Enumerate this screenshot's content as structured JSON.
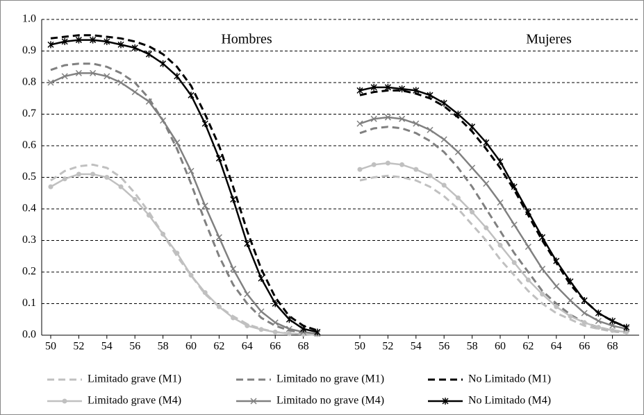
{
  "chart_data": {
    "type": "line",
    "ylim": [
      0,
      1
    ],
    "yticks": [
      {
        "value": 0,
        "label": "0.0"
      },
      0.1,
      0.2,
      0.3,
      0.4,
      0.5,
      0.6,
      0.7,
      0.8,
      0.9,
      {
        "value": 1,
        "label": "1.0"
      }
    ],
    "xlim": [
      50,
      69
    ],
    "xticks": [
      50,
      52,
      54,
      56,
      58,
      60,
      62,
      64,
      66,
      68
    ],
    "grid": true,
    "legend_position": "bottom",
    "legend": [
      {
        "name": "Limitado grave (M1)",
        "color": "#c0c0c0",
        "dash": true,
        "marker": "none"
      },
      {
        "name": "Limitado no grave (M1)",
        "color": "#808080",
        "dash": true,
        "marker": "none"
      },
      {
        "name": "No Limitado (M1)",
        "color": "#000000",
        "dash": true,
        "marker": "none"
      },
      {
        "name": "Limitado grave (M4)",
        "color": "#c0c0c0",
        "dash": false,
        "marker": "circle"
      },
      {
        "name": "Limitado no grave (M4)",
        "color": "#808080",
        "dash": false,
        "marker": "x"
      },
      {
        "name": "No Limitado (M4)",
        "color": "#000000",
        "dash": false,
        "marker": "star"
      }
    ],
    "panels": [
      {
        "title": "Hombres",
        "x": [
          50,
          51,
          52,
          53,
          54,
          55,
          56,
          57,
          58,
          59,
          60,
          61,
          62,
          63,
          64,
          65,
          66,
          67,
          68,
          69
        ],
        "series": [
          {
            "values": [
              0.49,
              0.52,
              0.535,
              0.54,
              0.53,
              0.5,
              0.45,
              0.39,
              0.32,
              0.25,
              0.19,
              0.13,
              0.09,
              0.06,
              0.035,
              0.02,
              0.01,
              0.006,
              0.003,
              0.002
            ]
          },
          {
            "values": [
              0.84,
              0.855,
              0.86,
              0.86,
              0.85,
              0.83,
              0.8,
              0.75,
              0.68,
              0.59,
              0.48,
              0.36,
              0.25,
              0.16,
              0.1,
              0.055,
              0.03,
              0.015,
              0.008,
              0.004
            ]
          },
          {
            "values": [
              0.94,
              0.945,
              0.95,
              0.95,
              0.945,
              0.94,
              0.93,
              0.915,
              0.89,
              0.85,
              0.79,
              0.7,
              0.6,
              0.47,
              0.33,
              0.21,
              0.12,
              0.06,
              0.03,
              0.015
            ]
          },
          {
            "values": [
              0.47,
              0.495,
              0.51,
              0.51,
              0.5,
              0.47,
              0.43,
              0.38,
              0.32,
              0.26,
              0.19,
              0.135,
              0.09,
              0.055,
              0.03,
              0.018,
              0.01,
              0.005,
              0.003,
              0.002
            ]
          },
          {
            "values": [
              0.8,
              0.82,
              0.83,
              0.83,
              0.82,
              0.8,
              0.77,
              0.74,
              0.68,
              0.61,
              0.52,
              0.41,
              0.31,
              0.21,
              0.13,
              0.075,
              0.04,
              0.02,
              0.01,
              0.005
            ]
          },
          {
            "values": [
              0.92,
              0.93,
              0.935,
              0.935,
              0.93,
              0.92,
              0.91,
              0.89,
              0.86,
              0.82,
              0.76,
              0.67,
              0.56,
              0.43,
              0.29,
              0.18,
              0.1,
              0.05,
              0.02,
              0.01
            ]
          }
        ]
      },
      {
        "title": "Mujeres",
        "x": [
          50,
          51,
          52,
          53,
          54,
          55,
          56,
          57,
          58,
          59,
          60,
          61,
          62,
          63,
          64,
          65,
          66,
          67,
          68,
          69
        ],
        "series": [
          {
            "values": [
              0.49,
              0.5,
              0.505,
              0.5,
              0.49,
              0.47,
              0.44,
              0.4,
              0.35,
              0.3,
              0.24,
              0.19,
              0.14,
              0.1,
              0.07,
              0.05,
              0.03,
              0.02,
              0.012,
              0.007
            ]
          },
          {
            "values": [
              0.64,
              0.655,
              0.66,
              0.655,
              0.64,
              0.615,
              0.58,
              0.53,
              0.47,
              0.4,
              0.33,
              0.26,
              0.2,
              0.14,
              0.1,
              0.065,
              0.04,
              0.025,
              0.015,
              0.01
            ]
          },
          {
            "values": [
              0.76,
              0.77,
              0.775,
              0.775,
              0.765,
              0.75,
              0.725,
              0.69,
              0.645,
              0.59,
              0.53,
              0.46,
              0.38,
              0.3,
              0.23,
              0.16,
              0.11,
              0.07,
              0.045,
              0.025
            ]
          },
          {
            "values": [
              0.525,
              0.54,
              0.545,
              0.54,
              0.525,
              0.505,
              0.475,
              0.435,
              0.39,
              0.34,
              0.285,
              0.23,
              0.175,
              0.13,
              0.09,
              0.06,
              0.04,
              0.025,
              0.015,
              0.01
            ]
          },
          {
            "values": [
              0.67,
              0.685,
              0.69,
              0.685,
              0.67,
              0.65,
              0.62,
              0.58,
              0.53,
              0.48,
              0.42,
              0.35,
              0.28,
              0.21,
              0.155,
              0.11,
              0.07,
              0.045,
              0.03,
              0.02
            ]
          },
          {
            "values": [
              0.775,
              0.785,
              0.785,
              0.78,
              0.775,
              0.76,
              0.735,
              0.7,
              0.66,
              0.61,
              0.55,
              0.47,
              0.39,
              0.31,
              0.235,
              0.17,
              0.11,
              0.07,
              0.045,
              0.025
            ]
          }
        ]
      }
    ]
  }
}
